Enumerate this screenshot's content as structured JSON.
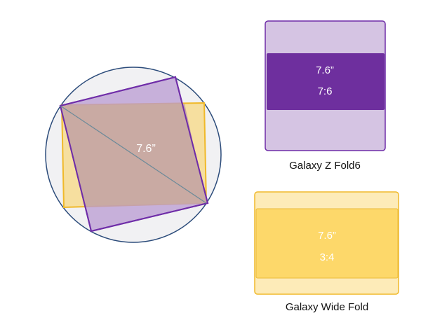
{
  "circle_diagram": {
    "diagonal_label": "7.6”",
    "colors": {
      "circle_fill": "#f1f1f3",
      "circle_stroke": "#2b4b7a",
      "purple": "#6f2da8",
      "purple_fill": "#b89ad1",
      "yellow": "#f0b92a",
      "yellow_fill": "#f6df9f",
      "overlap": "#c9aaa3",
      "diagonal": "#6b8a99"
    }
  },
  "devices": [
    {
      "name": "Galaxy Z Fold6",
      "size": "7.6”",
      "ratio": "7:6",
      "colors": {
        "outer": "#d5c4e3",
        "band": "#6e2f9e",
        "stroke": "#6f2da8"
      }
    },
    {
      "name": "Galaxy Wide Fold",
      "size": "7.6”",
      "ratio": "3:4",
      "colors": {
        "outer": "#fdebb8",
        "band": "#fdd86a",
        "stroke": "#f0b92a"
      }
    }
  ]
}
